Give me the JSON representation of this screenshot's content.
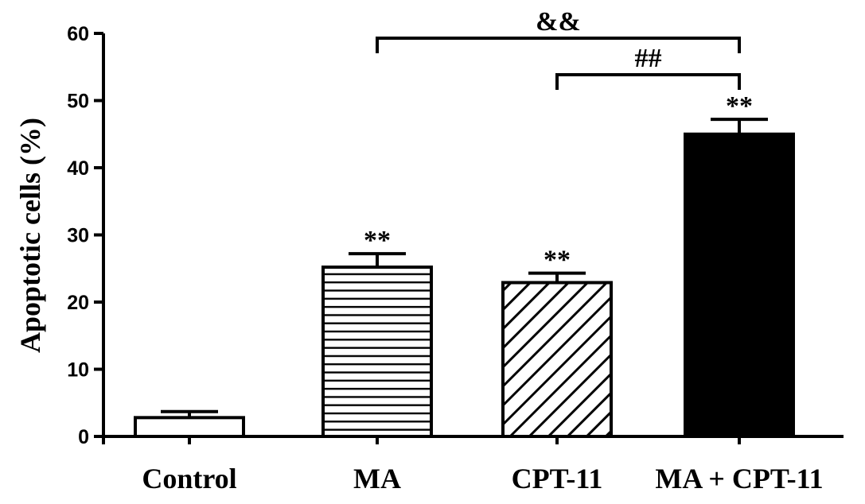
{
  "chart_data": {
    "type": "bar",
    "ylabel": "Apoptotic cells (%)",
    "xlabel": "",
    "ylim": [
      0,
      60
    ],
    "yticks": [
      0,
      10,
      20,
      30,
      40,
      50,
      60
    ],
    "grid": false,
    "legend": "none",
    "categories": [
      "Control",
      "MA",
      "CPT-11",
      "MA + CPT-11"
    ],
    "values": [
      2.8,
      25.2,
      22.9,
      45.0
    ],
    "errors": [
      0.9,
      2.0,
      1.4,
      2.2
    ],
    "patterns": [
      "open",
      "horizontal-lines",
      "diagonal-lines",
      "solid"
    ],
    "bar_marks": [
      "",
      "**",
      "**",
      "**"
    ],
    "comparisons": [
      {
        "from": "MA",
        "to": "MA + CPT-11",
        "label": "&&"
      },
      {
        "from": "CPT-11",
        "to": "MA + CPT-11",
        "label": "##"
      }
    ],
    "colors": {
      "bar_stroke": "#000000",
      "solid_fill": "#000000",
      "open_fill": "#ffffff"
    }
  }
}
